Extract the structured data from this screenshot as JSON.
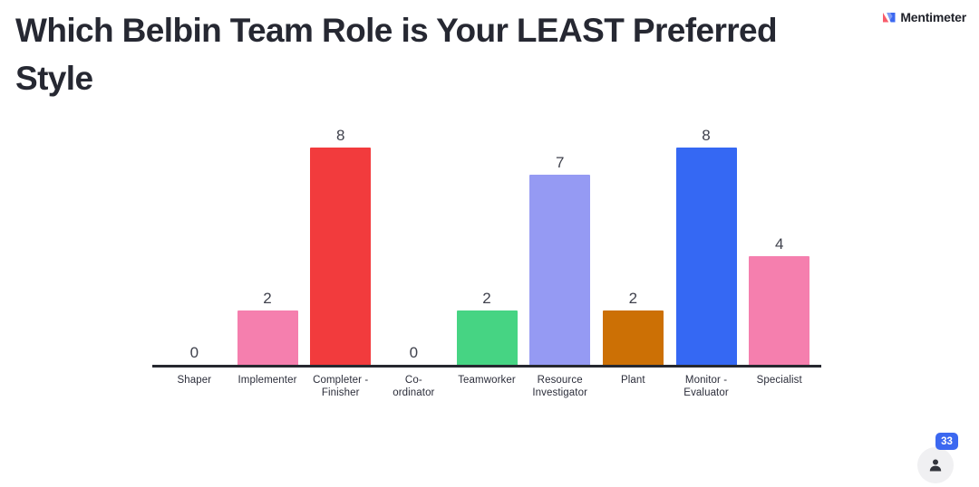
{
  "title": "Which Belbin Team Role is Your LEAST Preferred Style",
  "brand": {
    "name": "Mentimeter"
  },
  "participants": {
    "count": "33"
  },
  "colors": {
    "title_text": "#262832",
    "axis": "#26282f",
    "value_label": "#3f414c",
    "category_label": "#2b2d3a",
    "badge_bg": "#3c68f0",
    "badge_text": "#ffffff",
    "participant_button_bg": "#f0f0f2",
    "person_icon": "#33353c",
    "logo_red": "#f85c6b",
    "logo_blue": "#3c68f0"
  },
  "chart_data": {
    "type": "bar",
    "title": "Which Belbin Team Role is Your LEAST Preferred Style",
    "categories": [
      "Shaper",
      "Implementer",
      "Completer - Finisher",
      "Co-ordinator",
      "Teamworker",
      "Resource Investigator",
      "Plant",
      "Monitor - Evaluator",
      "Specialist"
    ],
    "category_label_lines": [
      [
        "Shaper"
      ],
      [
        "Implementer"
      ],
      [
        "Completer -",
        "Finisher"
      ],
      [
        "Co-",
        "ordinator"
      ],
      [
        "Teamworker"
      ],
      [
        "Resource",
        "Investigator"
      ],
      [
        "Plant"
      ],
      [
        "Monitor -",
        "Evaluator"
      ],
      [
        "Specialist"
      ]
    ],
    "values": [
      0,
      2,
      8,
      0,
      2,
      7,
      2,
      8,
      4
    ],
    "bar_colors": [
      null,
      "#f57fae",
      "#f23b3d",
      null,
      "#46d483",
      "#959af3",
      "#cc7005",
      "#3568f3",
      "#f57fae"
    ],
    "xlabel": "",
    "ylabel": "",
    "ylim": [
      0,
      8.8
    ],
    "grid": false,
    "legend": false,
    "data_labels": true
  }
}
